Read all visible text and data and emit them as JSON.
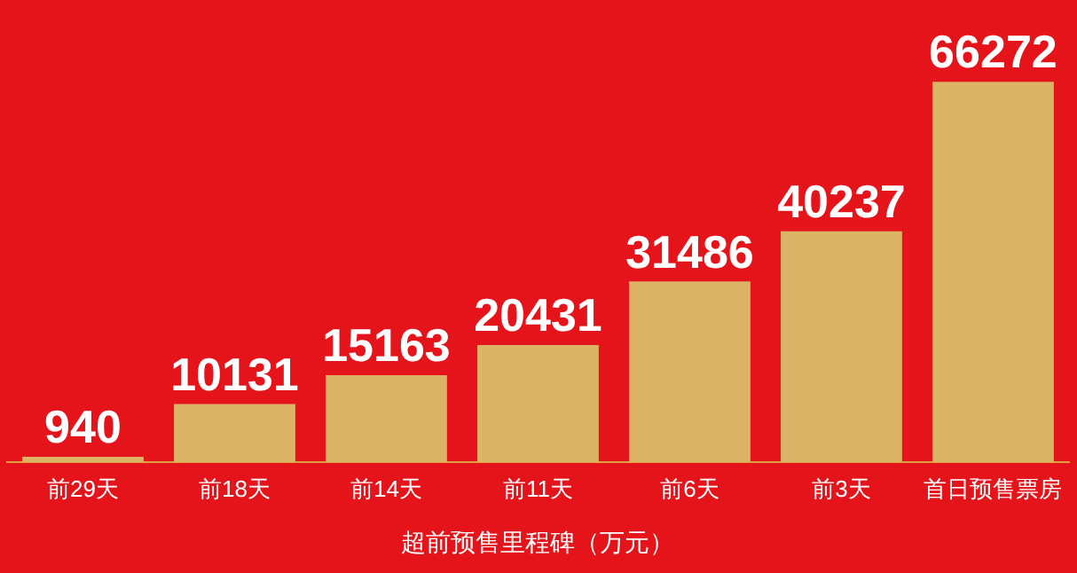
{
  "chart_data": {
    "type": "bar",
    "xlabel": "超前预售里程碑（万元）",
    "categories": [
      "前29天",
      "前18天",
      "前14天",
      "前11天",
      "前6天",
      "前3天",
      "首日预售票房"
    ],
    "values": [
      940,
      10131,
      15163,
      20431,
      31486,
      40237,
      66272
    ],
    "color": "#dcb468",
    "data_labels": true,
    "grid": false,
    "legend": false
  }
}
